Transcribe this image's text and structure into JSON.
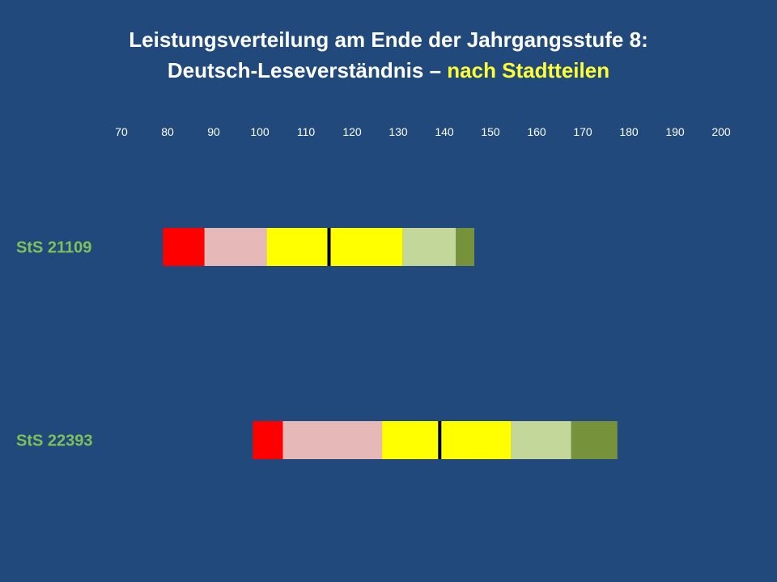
{
  "title": {
    "line1": "Leistungsverteilung am Ende der Jahrgangsstufe 8:",
    "line2_prefix": "Deutsch-Leseverständnis – ",
    "line2_highlight": "nach Stadtteilen"
  },
  "colors": {
    "background": "#21497c",
    "title_text": "#ffffff",
    "title_highlight": "#ffff33",
    "row_label": "#7fc15a",
    "segments": [
      "#ff0000",
      "#e6b8b7",
      "#ffff00",
      "#ffff00",
      "#c4d79b",
      "#76933c"
    ],
    "median_line": "#000000"
  },
  "chart_data": {
    "type": "bar",
    "orientation": "horizontal",
    "subtype": "stacked-percentile-bars",
    "x_ticks": [
      70,
      80,
      90,
      100,
      110,
      120,
      130,
      140,
      150,
      160,
      170,
      180,
      190,
      200
    ],
    "xlim": [
      70,
      200
    ],
    "grid": false,
    "legend": "none",
    "rows": [
      {
        "label": "StS 21109",
        "boundaries": [
          79,
          88,
          101.5,
          115,
          131,
          142.5,
          146.5
        ],
        "median": 115
      },
      {
        "label": "StS 22393",
        "boundaries": [
          98.5,
          105,
          126.5,
          139,
          154.5,
          167.5,
          177.5
        ],
        "median": 139
      }
    ]
  }
}
